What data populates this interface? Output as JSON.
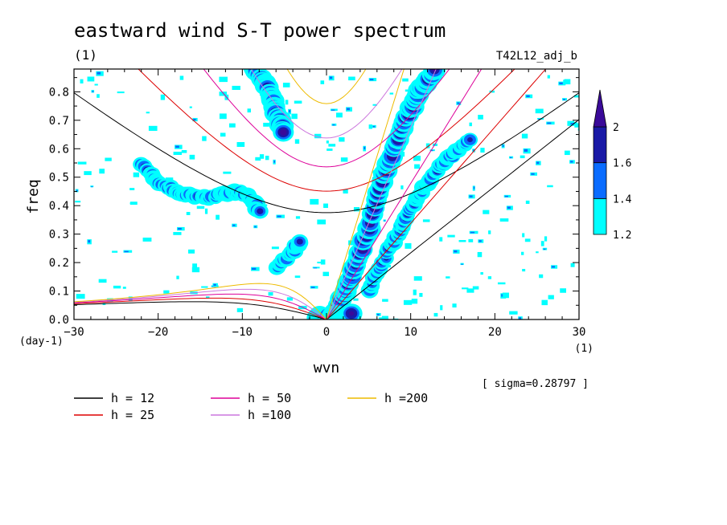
{
  "chart_data": {
    "type": "heatmap",
    "title": "eastward wind S-T power spectrum",
    "subtitle_left": "(1)",
    "subtitle_right": "T42L12_adj_b",
    "xlabel": "wvn",
    "ylabel": "freq",
    "x_unit": "(1)",
    "y_unit": "(day-1)",
    "sigma_label": "[ sigma=0.28797 ]",
    "xlim": [
      -30,
      30
    ],
    "ylim": [
      0,
      0.88
    ],
    "x_ticks": [
      -30,
      -20,
      -10,
      0,
      10,
      20,
      30
    ],
    "y_ticks": [
      0.0,
      0.1,
      0.2,
      0.3,
      0.4,
      0.5,
      0.6,
      0.7,
      0.8
    ],
    "x_tick_labels": [
      "−30",
      "−20",
      "−10",
      "0",
      "10",
      "20",
      "30"
    ],
    "y_tick_labels": [
      "0.0",
      "0.1",
      "0.2",
      "0.3",
      "0.4",
      "0.5",
      "0.6",
      "0.7",
      "0.8"
    ],
    "colorbar": {
      "levels": [
        1.2,
        1.4,
        1.6,
        2.0
      ],
      "level_labels": [
        "1.2",
        "1.4",
        "1.6",
        "2"
      ],
      "colors": [
        "#00ffff",
        "#0a6cff",
        "#1a1aa6",
        "#3a0a99"
      ]
    },
    "dispersion_curves": [
      {
        "label": "h = 12",
        "h": 12,
        "color": "#000000"
      },
      {
        "label": "h = 25",
        "h": 25,
        "color": "#dd0000"
      },
      {
        "label": "h = 50",
        "h": 50,
        "color": "#dd0099"
      },
      {
        "label": "h =100",
        "h": 100,
        "color": "#cc77dd"
      },
      {
        "label": "h =200",
        "h": 200,
        "color": "#eebb00"
      }
    ],
    "features": [
      {
        "name": "kelvin-band-1",
        "points": [
          [
            1,
            0.02
          ],
          [
            3,
            0.15
          ],
          [
            5,
            0.32
          ],
          [
            7,
            0.52
          ],
          [
            9,
            0.68
          ],
          [
            11,
            0.8
          ],
          [
            13,
            0.88
          ]
        ],
        "level": 3
      },
      {
        "name": "kelvin-band-2",
        "points": [
          [
            5,
            0.1
          ],
          [
            7,
            0.22
          ],
          [
            9,
            0.33
          ],
          [
            11,
            0.44
          ],
          [
            13,
            0.52
          ],
          [
            15,
            0.58
          ],
          [
            17,
            0.63
          ]
        ],
        "level": 2
      },
      {
        "name": "n1-westward-arc",
        "points": [
          [
            -22,
            0.55
          ],
          [
            -20,
            0.48
          ],
          [
            -17,
            0.44
          ],
          [
            -14,
            0.43
          ],
          [
            -11,
            0.45
          ],
          [
            -9,
            0.43
          ],
          [
            -8,
            0.38
          ]
        ],
        "level": 2
      },
      {
        "name": "upper-inertia-gravity",
        "points": [
          [
            -9,
            0.9
          ],
          [
            -7,
            0.82
          ],
          [
            -6,
            0.73
          ],
          [
            -5,
            0.66
          ]
        ],
        "level": 3
      },
      {
        "name": "mixed-rossby-gravity",
        "points": [
          [
            -6,
            0.18
          ],
          [
            -4,
            0.24
          ],
          [
            -3,
            0.28
          ]
        ],
        "level": 2
      },
      {
        "name": "low-freq-origin",
        "points": [
          [
            -1,
            0.01
          ],
          [
            0,
            0.01
          ],
          [
            1,
            0.01
          ],
          [
            2,
            0.01
          ],
          [
            3,
            0.02
          ]
        ],
        "level": 3
      }
    ]
  }
}
